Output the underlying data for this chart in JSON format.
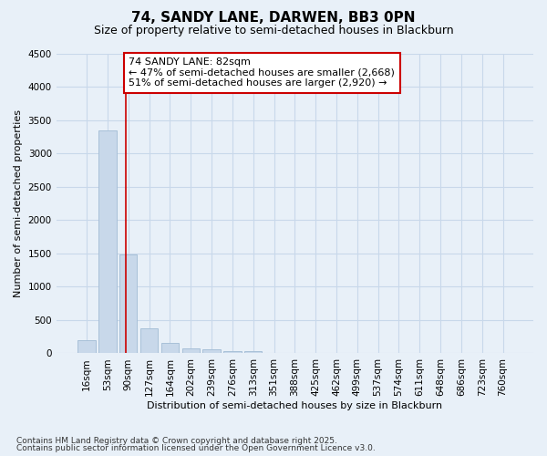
{
  "title_line1": "74, SANDY LANE, DARWEN, BB3 0PN",
  "title_line2": "Size of property relative to semi-detached houses in Blackburn",
  "xlabel": "Distribution of semi-detached houses by size in Blackburn",
  "ylabel": "Number of semi-detached properties",
  "categories": [
    "16sqm",
    "53sqm",
    "90sqm",
    "127sqm",
    "164sqm",
    "202sqm",
    "239sqm",
    "276sqm",
    "313sqm",
    "351sqm",
    "388sqm",
    "425sqm",
    "462sqm",
    "499sqm",
    "537sqm",
    "574sqm",
    "611sqm",
    "648sqm",
    "686sqm",
    "723sqm",
    "760sqm"
  ],
  "values": [
    200,
    3350,
    1490,
    380,
    155,
    80,
    55,
    40,
    30,
    0,
    0,
    0,
    0,
    0,
    0,
    0,
    0,
    0,
    0,
    0,
    0
  ],
  "bar_color": "#c8d8ea",
  "bar_edge_color": "#a8c0d8",
  "grid_color": "#c8d8ea",
  "bg_color": "#e8f0f8",
  "red_line_x": 1.87,
  "annotation_text_line1": "74 SANDY LANE: 82sqm",
  "annotation_text_line2": "← 47% of semi-detached houses are smaller (2,668)",
  "annotation_text_line3": "51% of semi-detached houses are larger (2,920) →",
  "annotation_box_color": "#ffffff",
  "annotation_box_edge": "#cc0000",
  "red_line_color": "#cc0000",
  "ylim": [
    0,
    4500
  ],
  "yticks": [
    0,
    500,
    1000,
    1500,
    2000,
    2500,
    3000,
    3500,
    4000,
    4500
  ],
  "footnote1": "Contains HM Land Registry data © Crown copyright and database right 2025.",
  "footnote2": "Contains public sector information licensed under the Open Government Licence v3.0.",
  "title_fontsize": 11,
  "subtitle_fontsize": 9,
  "label_fontsize": 8,
  "tick_fontsize": 7.5,
  "annot_fontsize": 8,
  "footnote_fontsize": 6.5
}
